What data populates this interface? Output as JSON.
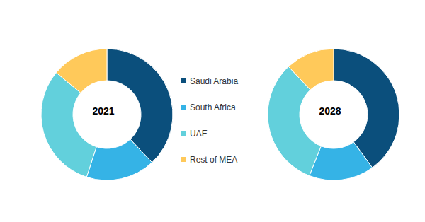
{
  "chart_data": [
    {
      "type": "pie",
      "title": "2021",
      "categories": [
        "Saudi Arabia",
        "South Africa",
        "UAE",
        "Rest of MEA"
      ],
      "values": [
        38,
        17,
        31,
        14
      ],
      "colors": [
        "#0b4f7c",
        "#35b3e6",
        "#62d0dc",
        "#ffc95a"
      ]
    },
    {
      "type": "pie",
      "title": "2028",
      "categories": [
        "Saudi Arabia",
        "South Africa",
        "UAE",
        "Rest of MEA"
      ],
      "values": [
        40,
        16,
        32,
        12
      ],
      "colors": [
        "#0b4f7c",
        "#35b3e6",
        "#62d0dc",
        "#ffc95a"
      ]
    }
  ]
}
